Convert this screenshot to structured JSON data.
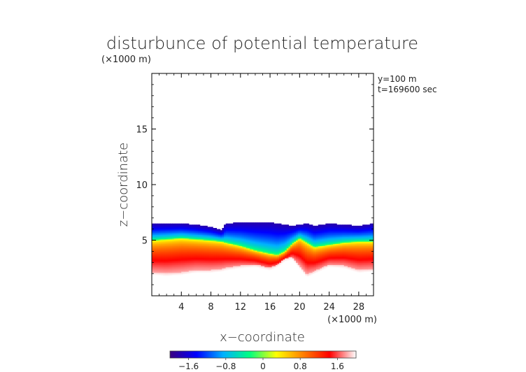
{
  "chart_data": {
    "type": "heatmap",
    "title": "disturbunce of potential temperature",
    "x_unit": "(×1000 m)",
    "z_unit": "(×1000 m)",
    "xlabel": "x−coordinate",
    "ylabel": "z−coordinate",
    "annotations": [
      "y=100 m",
      "t=169600 sec"
    ],
    "x_ticks": [
      4,
      8,
      12,
      16,
      20,
      24,
      28
    ],
    "x_tick_labels": [
      "4",
      "8",
      "12",
      "16",
      "20",
      "24",
      "28"
    ],
    "y_ticks": [
      5,
      10,
      15
    ],
    "y_tick_labels": [
      "5",
      "10",
      "15"
    ],
    "xlim": [
      0,
      30
    ],
    "ylim": [
      0,
      20
    ],
    "colorbar": {
      "range": [
        -2,
        2
      ],
      "ticks": [
        -1.6,
        -0.8,
        0,
        0.8,
        1.6
      ],
      "tick_labels": [
        "−1.6",
        "−0.8",
        "0",
        "0.8",
        "1.6"
      ],
      "colormap": [
        "#3a0080",
        "#0000ff",
        "#00b0ff",
        "#00ff80",
        "#ffff00",
        "#ff8000",
        "#ff0000",
        "#ffffff"
      ]
    },
    "field_profile": {
      "x": [
        0,
        2,
        4,
        6,
        8,
        9.5,
        10,
        12,
        14,
        16,
        17,
        18,
        19,
        20,
        21,
        22,
        24,
        26,
        28,
        30
      ],
      "top_z": [
        6.5,
        6.5,
        6.5,
        6.4,
        6.2,
        5.9,
        6.5,
        6.6,
        6.6,
        6.6,
        6.5,
        6.4,
        6.3,
        6.4,
        6.5,
        6.3,
        6.5,
        6.4,
        6.3,
        6.5
      ],
      "bottom_z": [
        1.8,
        1.7,
        1.8,
        2.0,
        2.0,
        2.1,
        2.2,
        2.4,
        2.5,
        2.2,
        2.5,
        3.0,
        3.2,
        2.4,
        1.6,
        1.9,
        2.5,
        2.4,
        2.0,
        2.1
      ],
      "zero_z": [
        5.0,
        5.1,
        5.2,
        5.1,
        5.0,
        4.9,
        4.8,
        4.5,
        4.1,
        3.8,
        3.7,
        4.0,
        4.7,
        5.2,
        4.8,
        4.4,
        4.6,
        4.8,
        4.9,
        4.9
      ],
      "min_value": -1.8,
      "max_value": 1.9
    }
  }
}
